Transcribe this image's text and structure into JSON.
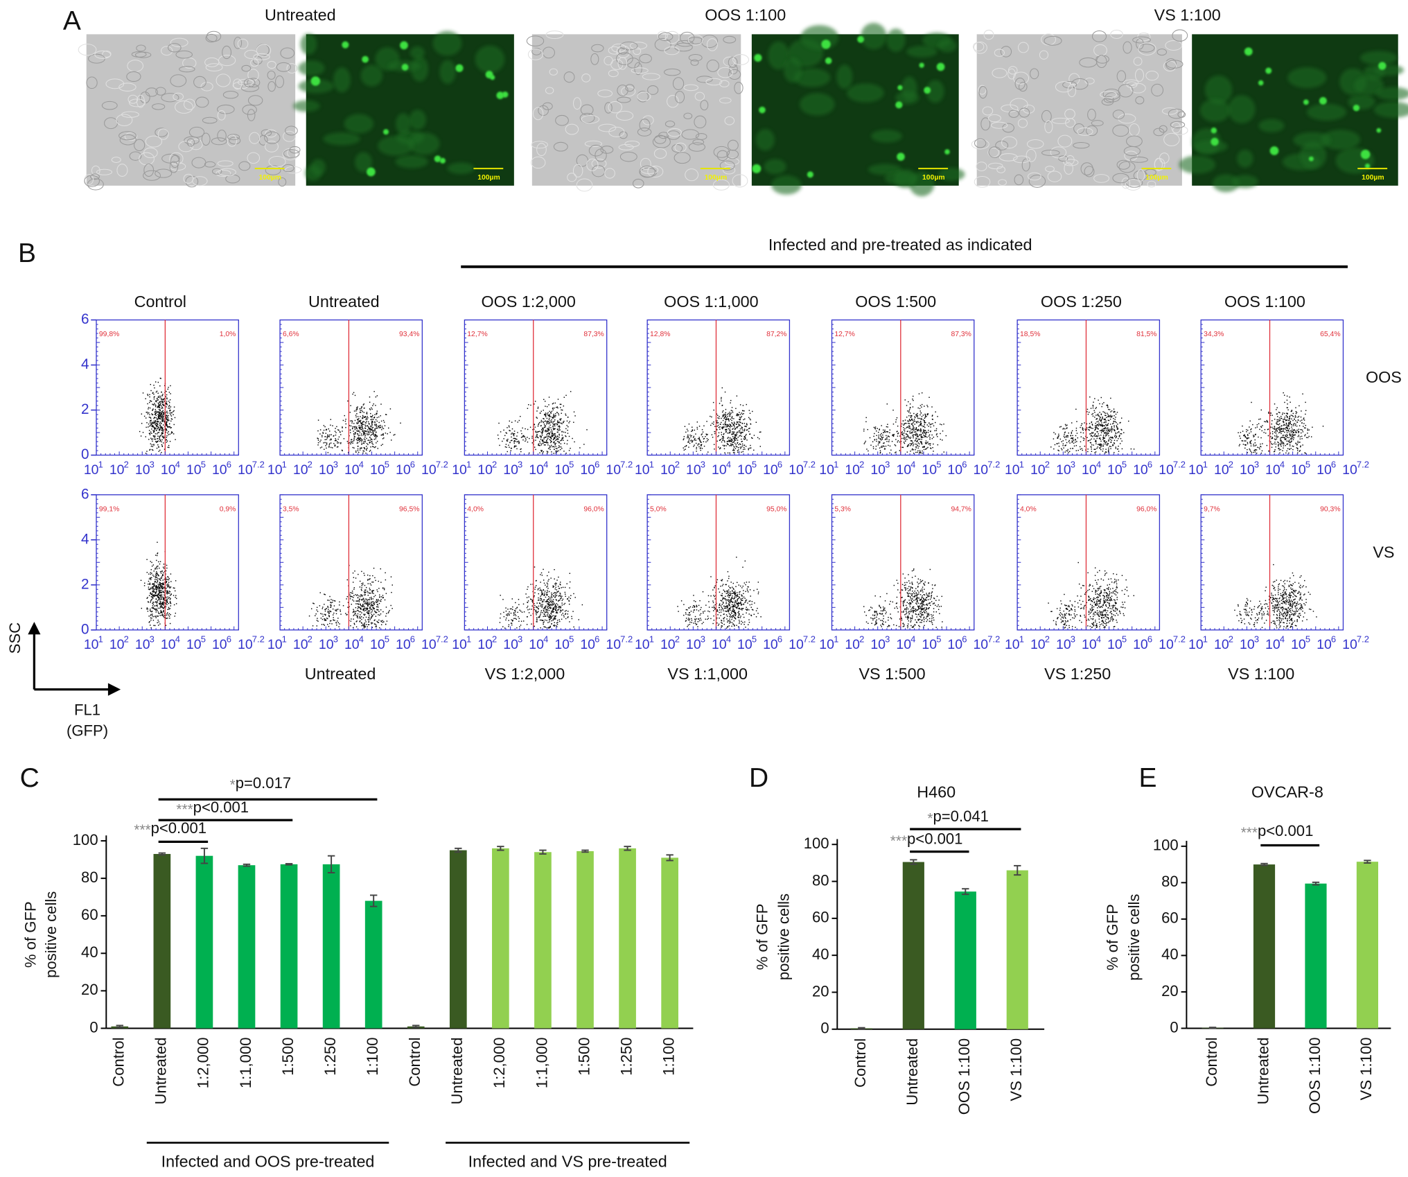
{
  "panel_labels": [
    "A",
    "B",
    "C",
    "D",
    "E"
  ],
  "panel_a": {
    "groups": [
      "Untreated",
      "OOS 1:100",
      "VS 1:100"
    ],
    "scale_bar": "100µm"
  },
  "panel_b": {
    "header": "Infected and pre-treated as indicated",
    "top_titles": [
      "Control",
      "Untreated",
      "OOS 1:2,000",
      "OOS 1:1,000",
      "OOS 1:500",
      "OOS 1:250",
      "OOS 1:100"
    ],
    "bottom_titles": [
      "Untreated",
      "VS 1:2,000",
      "VS 1:1,000",
      "VS 1:500",
      "VS 1:250",
      "VS 1:100"
    ],
    "row_labels": [
      "OOS",
      "VS"
    ],
    "y_ticks": [
      "0",
      "2",
      "4",
      "6"
    ],
    "x_tick_base": "10",
    "x_tick_exponents": [
      "1",
      "2",
      "3",
      "4",
      "5",
      "6",
      "7.2"
    ],
    "gates": [
      [
        [
          "99,8%",
          "1,0%"
        ],
        [
          "6,6%",
          "93,4%"
        ],
        [
          "12,7%",
          "87,3%"
        ],
        [
          "12,8%",
          "87,2%"
        ],
        [
          "12,7%",
          "87,3%"
        ],
        [
          "18,5%",
          "81,5%"
        ],
        [
          "34,3%",
          "65,4%"
        ]
      ],
      [
        [
          "99,1%",
          "0,9%"
        ],
        [
          "3,5%",
          "96,5%"
        ],
        [
          "4,0%",
          "96,0%"
        ],
        [
          "5,0%",
          "95,0%"
        ],
        [
          "5,3%",
          "94,7%"
        ],
        [
          "4,0%",
          "96,0%"
        ],
        [
          "9,7%",
          "90,3%"
        ]
      ]
    ],
    "axis_y": "SSC",
    "axis_x": [
      "FL1",
      "(GFP)"
    ]
  },
  "chart_data": [
    {
      "type": "bar",
      "categories": [
        "Control",
        "Untreated",
        "1:2,000",
        "1:1,000",
        "1:500",
        "1:250",
        "1:100",
        "Control",
        "Untreated",
        "1:2,000",
        "1:1,000",
        "1:500",
        "1:250",
        "1:100"
      ],
      "values": [
        1,
        93,
        92,
        87,
        87.5,
        87.5,
        68,
        1,
        95,
        96,
        94,
        94.5,
        96,
        91
      ],
      "errors": [
        0.5,
        0.5,
        4,
        0.5,
        0.3,
        4.5,
        3,
        0.5,
        1,
        1,
        1,
        0.5,
        1,
        1.5
      ],
      "colors": [
        "#3a5a22",
        "#3a5a22",
        "#00b050",
        "#00b050",
        "#00b050",
        "#00b050",
        "#00b050",
        "#3a5a22",
        "#3a5a22",
        "#92d050",
        "#92d050",
        "#92d050",
        "#92d050",
        "#92d050"
      ],
      "ylabel": [
        "% of GFP",
        "positive cells"
      ],
      "ylim": [
        0,
        100
      ],
      "yticks": [
        0,
        20,
        40,
        60,
        80,
        100
      ],
      "annotations": [
        {
          "stars": "*",
          "text": "p=0.017"
        },
        {
          "stars": "***",
          "text": "p<0.001"
        },
        {
          "stars": "***",
          "text": "p<0.001"
        }
      ],
      "group_labels": [
        "Infected and OOS pre-treated",
        "Infected and VS pre-treated"
      ]
    },
    {
      "type": "bar",
      "title": "H460",
      "categories": [
        "Control",
        "Untreated",
        "OOS 1:100",
        "VS 1:100"
      ],
      "values": [
        0.5,
        90.5,
        74.5,
        86
      ],
      "errors": [
        0.3,
        1.2,
        1.5,
        2.5
      ],
      "colors": [
        "#3a5a22",
        "#3a5a22",
        "#00b050",
        "#92d050"
      ],
      "ylabel": [
        "% of GFP",
        "positive cells"
      ],
      "ylim": [
        0,
        100
      ],
      "yticks": [
        0,
        20,
        40,
        60,
        80,
        100
      ],
      "annotations": [
        {
          "stars": "***",
          "text": "p<0.001"
        },
        {
          "stars": "*",
          "text": "p=0.041"
        }
      ]
    },
    {
      "type": "bar",
      "title": "OVCAR-8",
      "categories": [
        "Control",
        "Untreated",
        "OOS 1:100",
        "VS 1:100"
      ],
      "values": [
        0.3,
        90,
        79.5,
        91.5
      ],
      "errors": [
        0.2,
        0.5,
        0.7,
        0.7
      ],
      "colors": [
        "#3a5a22",
        "#3a5a22",
        "#00b050",
        "#92d050"
      ],
      "ylabel": [
        "% of GFP",
        "positive cells"
      ],
      "ylim": [
        0,
        100
      ],
      "yticks": [
        0,
        20,
        40,
        60,
        80,
        100
      ],
      "annotations": [
        {
          "stars": "***",
          "text": "p<0.001"
        }
      ]
    }
  ]
}
